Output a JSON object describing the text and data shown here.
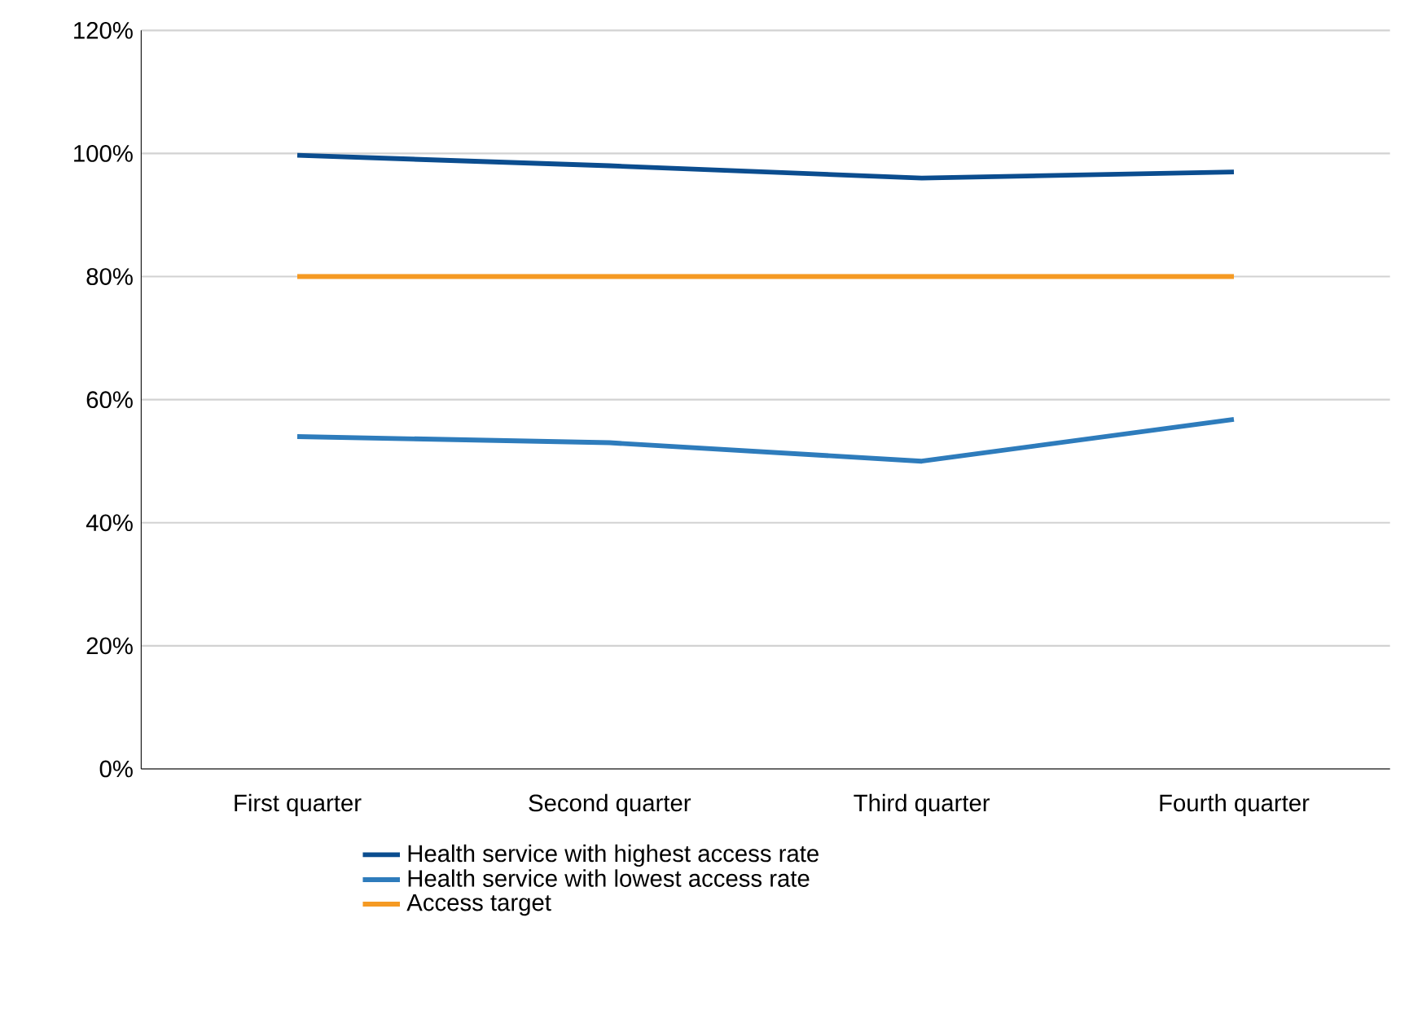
{
  "chart_data": {
    "type": "line",
    "categories": [
      "First quarter",
      "Second quarter",
      "Third quarter",
      "Fourth quarter"
    ],
    "series": [
      {
        "name": "Health service with highest access rate",
        "color": "#0b4d8f",
        "values": [
          99.7,
          98,
          96,
          97
        ]
      },
      {
        "name": "Health service with lowest access rate",
        "color": "#2e7cbc",
        "values": [
          54,
          53,
          50,
          56.8
        ]
      },
      {
        "name": "Access target",
        "color": "#f59a23",
        "values": [
          80,
          80,
          80,
          80
        ]
      }
    ],
    "ylim": [
      0,
      120
    ],
    "yticks": [
      {
        "value": 0,
        "label": "0%"
      },
      {
        "value": 20,
        "label": "20%"
      },
      {
        "value": 40,
        "label": "40%"
      },
      {
        "value": 60,
        "label": "60%"
      },
      {
        "value": 80,
        "label": "80%"
      },
      {
        "value": 100,
        "label": "100%"
      },
      {
        "value": 120,
        "label": "120%"
      }
    ],
    "grid": "y",
    "legend": "bottom",
    "marker": "none",
    "line_style": "solid"
  }
}
